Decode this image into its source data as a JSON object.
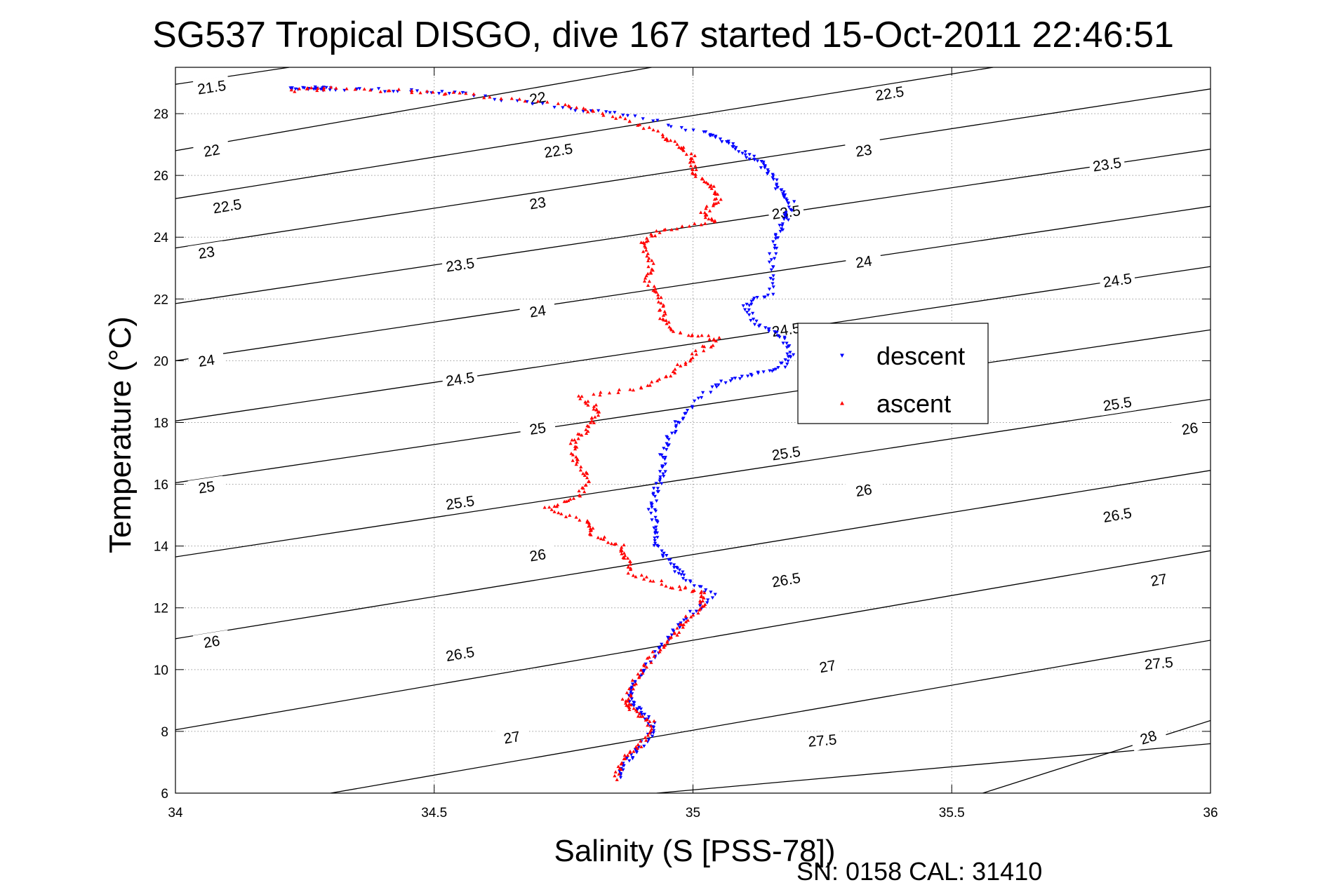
{
  "chart_data": {
    "type": "scatter",
    "title": "SG537 Tropical DISGO, dive 167 started 15-Oct-2011 22:46:51",
    "xlabel": "Salinity (S [PSS-78])",
    "ylabel": "Temperature (°C)",
    "xlim": [
      34,
      36
    ],
    "ylim": [
      6,
      29.5
    ],
    "x_ticks": [
      "34",
      "34.5",
      "35",
      "35.5",
      "36"
    ],
    "y_ticks": [
      "6",
      "8",
      "10",
      "12",
      "14",
      "16",
      "18",
      "20",
      "22",
      "24",
      "26",
      "28"
    ],
    "grid": true,
    "legend_position": "center-right",
    "footer": "SN: 0158  CAL: 31410",
    "colors": {
      "descent": "#0000ff",
      "ascent": "#ff0000",
      "contour": "#000000"
    },
    "series": [
      {
        "name": "descent",
        "marker": "triangle-down",
        "points": [
          [
            34.22,
            28.8
          ],
          [
            34.27,
            28.82
          ],
          [
            34.3,
            28.8
          ],
          [
            34.45,
            28.75
          ],
          [
            34.56,
            28.62
          ],
          [
            34.75,
            28.2
          ],
          [
            34.88,
            27.95
          ],
          [
            35.02,
            27.4
          ],
          [
            35.06,
            27.1
          ],
          [
            35.1,
            26.7
          ],
          [
            35.13,
            26.4
          ],
          [
            35.15,
            26.0
          ],
          [
            35.17,
            25.5
          ],
          [
            35.19,
            25.1
          ],
          [
            35.18,
            24.6
          ],
          [
            35.16,
            24.0
          ],
          [
            35.15,
            23.2
          ],
          [
            35.15,
            22.2
          ],
          [
            35.1,
            21.8
          ],
          [
            35.12,
            21.2
          ],
          [
            35.17,
            20.8
          ],
          [
            35.19,
            20.2
          ],
          [
            35.17,
            19.8
          ],
          [
            35.1,
            19.5
          ],
          [
            35.04,
            19.2
          ],
          [
            34.98,
            18.3
          ],
          [
            34.96,
            17.7
          ],
          [
            34.94,
            17.0
          ],
          [
            34.94,
            16.4
          ],
          [
            34.93,
            15.8
          ],
          [
            34.92,
            15.2
          ],
          [
            34.93,
            14.6
          ],
          [
            34.93,
            14.0
          ],
          [
            34.96,
            13.4
          ],
          [
            34.98,
            13.0
          ],
          [
            35.04,
            12.4
          ],
          [
            34.99,
            11.7
          ],
          [
            34.95,
            11.0
          ],
          [
            34.92,
            10.3
          ],
          [
            34.89,
            9.6
          ],
          [
            34.88,
            9.0
          ],
          [
            34.9,
            8.6
          ],
          [
            34.93,
            8.1
          ],
          [
            34.9,
            7.5
          ],
          [
            34.87,
            7.0
          ],
          [
            34.86,
            6.5
          ]
        ]
      },
      {
        "name": "ascent",
        "marker": "triangle-up",
        "points": [
          [
            34.23,
            28.75
          ],
          [
            34.3,
            28.82
          ],
          [
            34.45,
            28.72
          ],
          [
            34.58,
            28.6
          ],
          [
            34.75,
            28.25
          ],
          [
            34.83,
            28.0
          ],
          [
            34.92,
            27.5
          ],
          [
            34.97,
            27.0
          ],
          [
            35.0,
            26.6
          ],
          [
            35.0,
            26.1
          ],
          [
            35.03,
            25.7
          ],
          [
            35.05,
            25.2
          ],
          [
            35.02,
            24.8
          ],
          [
            35.04,
            24.5
          ],
          [
            34.93,
            24.2
          ],
          [
            34.9,
            23.8
          ],
          [
            34.92,
            23.2
          ],
          [
            34.91,
            22.6
          ],
          [
            34.94,
            22.0
          ],
          [
            34.94,
            21.4
          ],
          [
            34.97,
            20.9
          ],
          [
            35.05,
            20.7
          ],
          [
            35.0,
            20.2
          ],
          [
            34.96,
            19.6
          ],
          [
            34.9,
            19.1
          ],
          [
            34.78,
            18.8
          ],
          [
            34.82,
            18.4
          ],
          [
            34.8,
            17.9
          ],
          [
            34.77,
            17.4
          ],
          [
            34.77,
            16.8
          ],
          [
            34.8,
            16.2
          ],
          [
            34.78,
            15.6
          ],
          [
            34.72,
            15.2
          ],
          [
            34.8,
            14.8
          ],
          [
            34.8,
            14.4
          ],
          [
            34.86,
            14.0
          ],
          [
            34.87,
            13.6
          ],
          [
            34.88,
            13.1
          ],
          [
            34.96,
            12.7
          ],
          [
            35.02,
            12.5
          ],
          [
            35.02,
            12.1
          ],
          [
            34.98,
            11.5
          ],
          [
            34.96,
            11.0
          ],
          [
            34.92,
            10.4
          ],
          [
            34.89,
            9.7
          ],
          [
            34.87,
            9.0
          ],
          [
            34.88,
            8.7
          ],
          [
            34.92,
            8.3
          ],
          [
            34.9,
            7.6
          ],
          [
            34.86,
            7.1
          ],
          [
            34.85,
            6.4
          ]
        ]
      }
    ],
    "contours": [
      {
        "label": "21.5",
        "points": [
          [
            34.0,
            28.95
          ],
          [
            34.22,
            29.5
          ]
        ],
        "labels": [
          [
            34.07,
            28.85
          ]
        ]
      },
      {
        "label": "22",
        "points": [
          [
            34.0,
            26.8
          ],
          [
            34.92,
            29.5
          ]
        ],
        "labels": [
          [
            34.07,
            26.8
          ],
          [
            34.7,
            28.5
          ]
        ]
      },
      {
        "label": "22.5",
        "points": [
          [
            34.0,
            25.25
          ],
          [
            35.58,
            29.5
          ]
        ],
        "labels": [
          [
            34.1,
            25.0
          ],
          [
            34.74,
            26.8
          ],
          [
            35.38,
            28.65
          ]
        ]
      },
      {
        "label": "23",
        "points": [
          [
            34.0,
            23.65
          ],
          [
            36.0,
            28.8
          ]
        ],
        "labels": [
          [
            34.06,
            23.5
          ],
          [
            34.7,
            25.1
          ],
          [
            35.33,
            26.8
          ]
        ]
      },
      {
        "label": "23.5",
        "points": [
          [
            34.0,
            21.85
          ],
          [
            36.0,
            26.85
          ]
        ],
        "labels": [
          [
            34.55,
            23.1
          ],
          [
            35.18,
            24.8
          ],
          [
            35.8,
            26.35
          ]
        ]
      },
      {
        "label": "24",
        "points": [
          [
            34.0,
            20.0
          ],
          [
            36.0,
            25.0
          ]
        ],
        "labels": [
          [
            34.06,
            20.0
          ],
          [
            34.7,
            21.6
          ],
          [
            35.33,
            23.2
          ]
        ]
      },
      {
        "label": "24.5",
        "points": [
          [
            34.0,
            18.05
          ],
          [
            36.0,
            23.05
          ]
        ],
        "labels": [
          [
            34.55,
            19.4
          ],
          [
            35.18,
            21.0
          ],
          [
            35.82,
            22.6
          ]
        ]
      },
      {
        "label": "25",
        "points": [
          [
            34.0,
            16.05
          ],
          [
            36.0,
            21.0
          ]
        ],
        "labels": [
          [
            34.06,
            15.9
          ],
          [
            34.7,
            17.8
          ],
          [
            35.33,
            19.4
          ]
        ]
      },
      {
        "label": "25.5",
        "points": [
          [
            34.0,
            13.65
          ],
          [
            36.0,
            18.75
          ]
        ],
        "labels": [
          [
            34.55,
            15.4
          ],
          [
            35.18,
            17.0
          ],
          [
            35.82,
            18.6
          ]
        ]
      },
      {
        "label": "26",
        "points": [
          [
            34.0,
            11.0
          ],
          [
            36.0,
            16.45
          ]
        ],
        "labels": [
          [
            34.07,
            10.9
          ],
          [
            34.7,
            13.7
          ],
          [
            35.33,
            15.8
          ],
          [
            35.96,
            17.8
          ]
        ]
      },
      {
        "label": "26.5",
        "points": [
          [
            34.0,
            8.05
          ],
          [
            36.0,
            13.85
          ]
        ],
        "labels": [
          [
            34.55,
            10.5
          ],
          [
            35.18,
            12.9
          ],
          [
            35.82,
            15.0
          ]
        ]
      },
      {
        "label": "27",
        "points": [
          [
            34.3,
            6.0
          ],
          [
            36.0,
            10.95
          ]
        ],
        "labels": [
          [
            34.65,
            7.8
          ],
          [
            35.26,
            10.1
          ],
          [
            35.9,
            12.9
          ]
        ]
      },
      {
        "label": "27.5",
        "points": [
          [
            34.93,
            6.0
          ],
          [
            36.0,
            7.6
          ]
        ],
        "labels": [
          [
            35.25,
            7.7
          ],
          [
            35.9,
            10.2
          ]
        ]
      },
      {
        "label": "28",
        "points": [
          [
            35.56,
            6.0
          ],
          [
            36.0,
            8.35
          ]
        ],
        "labels": [
          [
            35.88,
            7.8
          ]
        ]
      }
    ]
  }
}
